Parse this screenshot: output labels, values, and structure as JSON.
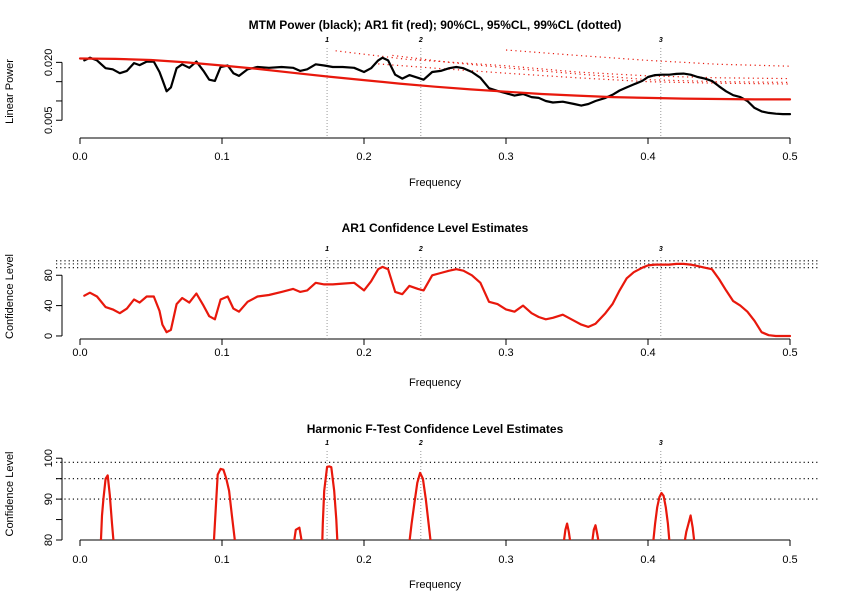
{
  "chart_data": [
    {
      "type": "line",
      "title": "MTM Power (black); AR1 fit (red); 90%CL, 95%CL, 99%CL (dotted)",
      "xlabel": "Frequency",
      "ylabel": "Linear Power",
      "xlim": [
        0,
        0.5
      ],
      "ylim": [
        0.0004,
        0.0245
      ],
      "x_ticks": [
        "0.0",
        "0.1",
        "0.2",
        "0.3",
        "0.4",
        "0.5"
      ],
      "y_ticks": [
        0.005,
        0.01,
        0.015,
        0.02
      ],
      "y_tick_labels": [
        "0.005",
        "",
        "",
        "0.020"
      ],
      "peak_markers": [
        {
          "label": "1",
          "x": 0.174
        },
        {
          "label": "2",
          "x": 0.24
        },
        {
          "label": "3",
          "x": 0.409
        }
      ],
      "series": [
        {
          "color": "#000000",
          "x": [
            0.003,
            0.007,
            0.012,
            0.018,
            0.023,
            0.028,
            0.033,
            0.038,
            0.042,
            0.047,
            0.052,
            0.056,
            0.058,
            0.061,
            0.064,
            0.068,
            0.072,
            0.077,
            0.082,
            0.087,
            0.091,
            0.095,
            0.099,
            0.104,
            0.108,
            0.112,
            0.118,
            0.125,
            0.133,
            0.142,
            0.15,
            0.155,
            0.16,
            0.166,
            0.172,
            0.178,
            0.185,
            0.193,
            0.2,
            0.205,
            0.21,
            0.213,
            0.217,
            0.222,
            0.227,
            0.232,
            0.238,
            0.242,
            0.248,
            0.254,
            0.26,
            0.265,
            0.27,
            0.276,
            0.282,
            0.288,
            0.294,
            0.3,
            0.306,
            0.312,
            0.318,
            0.323,
            0.328,
            0.333,
            0.34,
            0.348,
            0.353,
            0.358,
            0.363,
            0.37,
            0.375,
            0.38,
            0.385,
            0.39,
            0.396,
            0.4,
            0.405,
            0.41,
            0.415,
            0.42,
            0.425,
            0.43,
            0.435,
            0.44,
            0.445,
            0.45,
            0.455,
            0.46,
            0.465,
            0.47,
            0.475,
            0.48,
            0.485,
            0.49,
            0.495,
            0.5
          ],
          "y": [
            0.0205,
            0.0212,
            0.0205,
            0.0185,
            0.0182,
            0.0172,
            0.0178,
            0.0198,
            0.0193,
            0.0202,
            0.0202,
            0.0175,
            0.0155,
            0.0125,
            0.0135,
            0.0185,
            0.0195,
            0.0186,
            0.0202,
            0.0178,
            0.0155,
            0.0152,
            0.0188,
            0.0192,
            0.0172,
            0.0165,
            0.0182,
            0.0188,
            0.0186,
            0.0188,
            0.0186,
            0.0178,
            0.0182,
            0.0195,
            0.0192,
            0.0188,
            0.0188,
            0.0186,
            0.0175,
            0.0185,
            0.0205,
            0.0212,
            0.0205,
            0.0168,
            0.0158,
            0.0167,
            0.016,
            0.0155,
            0.0175,
            0.0178,
            0.0185,
            0.0188,
            0.0185,
            0.0175,
            0.016,
            0.0133,
            0.0126,
            0.012,
            0.0114,
            0.0118,
            0.011,
            0.0108,
            0.01,
            0.0096,
            0.0098,
            0.0092,
            0.0088,
            0.0092,
            0.01,
            0.0108,
            0.0116,
            0.0127,
            0.0135,
            0.0143,
            0.0152,
            0.0162,
            0.0167,
            0.0168,
            0.0168,
            0.017,
            0.0171,
            0.0168,
            0.0162,
            0.0158,
            0.0152,
            0.0138,
            0.0125,
            0.0115,
            0.011,
            0.01,
            0.0082,
            0.0073,
            0.0069,
            0.0067,
            0.0066,
            0.0066
          ]
        },
        {
          "color": "#e8180c",
          "x": [
            0,
            0.025,
            0.05,
            0.075,
            0.1,
            0.125,
            0.15,
            0.175,
            0.2,
            0.225,
            0.25,
            0.275,
            0.3,
            0.325,
            0.35,
            0.375,
            0.4,
            0.425,
            0.45,
            0.475,
            0.5
          ],
          "y": [
            0.021,
            0.0209,
            0.0206,
            0.02,
            0.0192,
            0.0183,
            0.0173,
            0.0163,
            0.0154,
            0.0145,
            0.0137,
            0.013,
            0.0124,
            0.0118,
            0.0114,
            0.011,
            0.0108,
            0.0106,
            0.0105,
            0.0104,
            0.0104
          ]
        }
      ],
      "dotted_lines": [
        {
          "color": "#e8180c",
          "x": [
            0.18,
            0.23,
            0.3,
            0.35,
            0.4,
            0.45,
            0.5
          ],
          "y": [
            0.023,
            0.0208,
            0.0191,
            0.0175,
            0.0165,
            0.016,
            0.0158
          ]
        },
        {
          "color": "#e8180c",
          "x": [
            0.22,
            0.26,
            0.3,
            0.35,
            0.4,
            0.45,
            0.5
          ],
          "y": [
            0.0218,
            0.02,
            0.0186,
            0.017,
            0.0155,
            0.015,
            0.0148
          ]
        },
        {
          "color": "#e8180c",
          "x": [
            0.21,
            0.25,
            0.3,
            0.35,
            0.4,
            0.45,
            0.5
          ],
          "y": [
            0.0196,
            0.0185,
            0.0172,
            0.016,
            0.015,
            0.0146,
            0.0144
          ]
        },
        {
          "color": "#e8180c",
          "x": [
            0.3,
            0.35,
            0.4,
            0.45,
            0.5
          ],
          "y": [
            0.0232,
            0.0218,
            0.0205,
            0.0195,
            0.019
          ]
        }
      ]
    },
    {
      "type": "line",
      "title": "AR1 Confidence Level Estimates",
      "xlabel": "Frequency",
      "ylabel": "Confidence Level",
      "xlim": [
        0,
        0.5
      ],
      "ylim": [
        -4,
        108
      ],
      "x_ticks": [
        "0.0",
        "0.1",
        "0.2",
        "0.3",
        "0.4",
        "0.5"
      ],
      "y_ticks": [
        0,
        40,
        80
      ],
      "y_tick_labels": [
        "0",
        "40",
        "80"
      ],
      "hlines": [
        90,
        95,
        99
      ],
      "peak_markers": [
        {
          "label": "1",
          "x": 0.174
        },
        {
          "label": "2",
          "x": 0.24
        },
        {
          "label": "3",
          "x": 0.409
        }
      ],
      "series": [
        {
          "color": "#e8180c",
          "x": [
            0.003,
            0.007,
            0.012,
            0.018,
            0.023,
            0.028,
            0.033,
            0.038,
            0.042,
            0.047,
            0.052,
            0.056,
            0.058,
            0.061,
            0.064,
            0.068,
            0.072,
            0.077,
            0.082,
            0.087,
            0.091,
            0.095,
            0.099,
            0.104,
            0.108,
            0.112,
            0.118,
            0.125,
            0.133,
            0.142,
            0.15,
            0.155,
            0.16,
            0.166,
            0.172,
            0.178,
            0.185,
            0.193,
            0.2,
            0.205,
            0.21,
            0.213,
            0.217,
            0.222,
            0.227,
            0.232,
            0.238,
            0.242,
            0.248,
            0.254,
            0.26,
            0.265,
            0.27,
            0.276,
            0.282,
            0.288,
            0.294,
            0.3,
            0.306,
            0.312,
            0.318,
            0.323,
            0.328,
            0.333,
            0.34,
            0.348,
            0.353,
            0.358,
            0.363,
            0.37,
            0.375,
            0.38,
            0.385,
            0.39,
            0.396,
            0.4,
            0.405,
            0.41,
            0.415,
            0.42,
            0.425,
            0.43,
            0.435,
            0.44,
            0.445,
            0.45,
            0.455,
            0.46,
            0.465,
            0.47,
            0.475,
            0.48,
            0.485,
            0.49,
            0.495,
            0.5
          ],
          "y": [
            53,
            57,
            52,
            38,
            35,
            30,
            36,
            48,
            44,
            52,
            52,
            33,
            15,
            5,
            8,
            42,
            50,
            44,
            56,
            40,
            26,
            22,
            48,
            52,
            36,
            32,
            45,
            52,
            54,
            58,
            62,
            58,
            60,
            70,
            68,
            68,
            69,
            70,
            60,
            72,
            88,
            91,
            88,
            58,
            55,
            66,
            62,
            60,
            80,
            83,
            86,
            88,
            86,
            80,
            70,
            45,
            42,
            35,
            32,
            40,
            30,
            25,
            22,
            24,
            28,
            20,
            15,
            12,
            16,
            30,
            42,
            60,
            76,
            84,
            90,
            93,
            94,
            94,
            94,
            95,
            95,
            94,
            92,
            90,
            88,
            75,
            60,
            46,
            40,
            32,
            20,
            5,
            1,
            0,
            0,
            0
          ]
        }
      ]
    },
    {
      "type": "line",
      "title": "Harmonic F-Test Confidence Level Estimates",
      "xlabel": "Frequency",
      "ylabel": "Confidence Level",
      "xlim": [
        0,
        0.5
      ],
      "ylim": [
        80,
        102.5
      ],
      "x_ticks": [
        "0.0",
        "0.1",
        "0.2",
        "0.3",
        "0.4",
        "0.5"
      ],
      "y_ticks": [
        80,
        85,
        90,
        95,
        100
      ],
      "y_tick_labels": [
        "80",
        "",
        "90",
        "",
        "100"
      ],
      "hlines": [
        90,
        95,
        99
      ],
      "peak_markers": [
        {
          "label": "1",
          "x": 0.174
        },
        {
          "label": "2",
          "x": 0.24
        },
        {
          "label": "3",
          "x": 0.409
        }
      ],
      "series": [
        {
          "color": "#e8180c",
          "segments": [
            {
              "x": [
                0.0145,
                0.0155,
                0.0165,
                0.018,
                0.0195,
                0.021,
                0.0225,
                0.024,
                0.0255
              ],
              "y": [
                78,
                86,
                90,
                95,
                95.8,
                91,
                84,
                78,
                70
              ]
            },
            {
              "x": [
                0.094,
                0.095,
                0.097,
                0.099,
                0.101,
                0.103,
                0.105,
                0.107,
                0.109,
                0.11
              ],
              "y": [
                78,
                84,
                96,
                97.4,
                97.2,
                95,
                92,
                86,
                80,
                74
              ]
            },
            {
              "x": [
                0.1505,
                0.152,
                0.1545,
                0.156,
                0.157
              ],
              "y": [
                79,
                82.5,
                83,
                80,
                78
              ]
            },
            {
              "x": [
                0.1705,
                0.171,
                0.172,
                0.174,
                0.1755,
                0.177,
                0.179,
                0.1805,
                0.1815
              ],
              "y": [
                78,
                84,
                92,
                97.9,
                98,
                97.8,
                92,
                85,
                78
              ]
            },
            {
              "x": [
                0.2315,
                0.2335,
                0.2355,
                0.2375,
                0.2395,
                0.2415,
                0.2435,
                0.2455,
                0.2475
              ],
              "y": [
                78,
                84,
                89,
                94,
                96.4,
                95,
                90,
                84,
                78
              ]
            },
            {
              "x": [
                0.3405,
                0.3418,
                0.343,
                0.3442,
                0.3455
              ],
              "y": [
                79,
                82.5,
                84,
                82,
                79
              ]
            },
            {
              "x": [
                0.3605,
                0.3618,
                0.363,
                0.3642,
                0.3655
              ],
              "y": [
                79,
                82.5,
                83.6,
                81.5,
                79
              ]
            },
            {
              "x": [
                0.4035,
                0.405,
                0.4065,
                0.408,
                0.4095,
                0.411,
                0.4125,
                0.414,
                0.4155
              ],
              "y": [
                79,
                84,
                88,
                90.5,
                91.5,
                90.8,
                88,
                84,
                78
              ]
            },
            {
              "x": [
                0.4255,
                0.427,
                0.4285,
                0.43,
                0.4315,
                0.4325,
                0.434
              ],
              "y": [
                79,
                82,
                84,
                86,
                83,
                80,
                78
              ]
            }
          ]
        }
      ]
    }
  ]
}
